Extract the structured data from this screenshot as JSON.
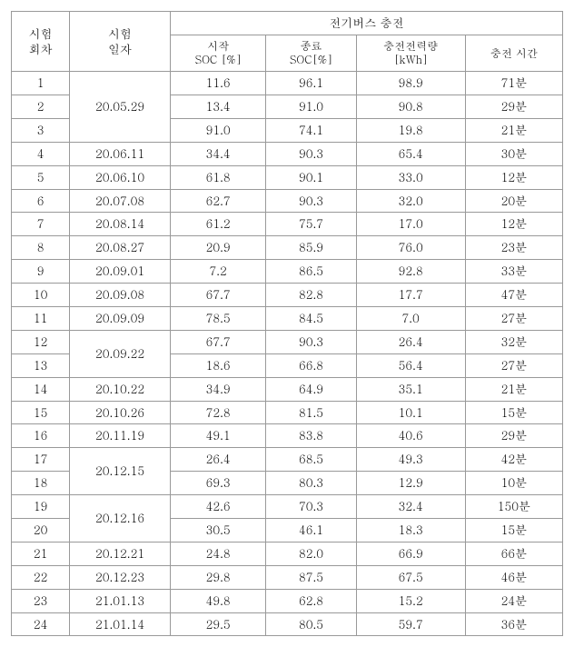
{
  "headers": {
    "col1_line1": "시험",
    "col1_line2": "회차",
    "col2_line1": "시험",
    "col2_line2": "일자",
    "group_title": "전기버스 충전",
    "sub1_line1": "시작",
    "sub1_line2": "SOC [%]",
    "sub2_line1": "종료",
    "sub2_line2": "SOC[%]",
    "sub3_line1": "충전전력량",
    "sub3_line2": "[kWh]",
    "sub4": "충전 시간"
  },
  "rows": [
    {
      "num": "1",
      "date": "20.05.29",
      "start": "11.6",
      "end": "96.1",
      "kwh": "98.9",
      "time": "71분",
      "date_rowspan": 3
    },
    {
      "num": "2",
      "date": "",
      "start": "13.4",
      "end": "91.0",
      "kwh": "90.8",
      "time": "29분"
    },
    {
      "num": "3",
      "date": "",
      "start": "91.0",
      "end": "74.1",
      "kwh": "19.8",
      "time": "21분"
    },
    {
      "num": "4",
      "date": "20.06.11",
      "start": "34.4",
      "end": "90.3",
      "kwh": "65.4",
      "time": "30분",
      "date_rowspan": 1
    },
    {
      "num": "5",
      "date": "20.06.10",
      "start": "61.8",
      "end": "90.1",
      "kwh": "33.0",
      "time": "12분",
      "date_rowspan": 1
    },
    {
      "num": "6",
      "date": "20.07.08",
      "start": "62.7",
      "end": "90.3",
      "kwh": "32.0",
      "time": "20분",
      "date_rowspan": 1
    },
    {
      "num": "7",
      "date": "20.08.14",
      "start": "61.2",
      "end": "75.7",
      "kwh": "17.0",
      "time": "12분",
      "date_rowspan": 1
    },
    {
      "num": "8",
      "date": "20.08.27",
      "start": "20.9",
      "end": "85.9",
      "kwh": "76.0",
      "time": "23분",
      "date_rowspan": 1
    },
    {
      "num": "9",
      "date": "20.09.01",
      "start": "7.2",
      "end": "86.5",
      "kwh": "92.8",
      "time": "33분",
      "date_rowspan": 1
    },
    {
      "num": "10",
      "date": "20.09.08",
      "start": "67.7",
      "end": "82.8",
      "kwh": "17.7",
      "time": "47분",
      "date_rowspan": 1
    },
    {
      "num": "11",
      "date": "20.09.09",
      "start": "78.5",
      "end": "84.5",
      "kwh": "7.0",
      "time": "27분",
      "date_rowspan": 1
    },
    {
      "num": "12",
      "date": "20.09.22",
      "start": "67.7",
      "end": "90.3",
      "kwh": "26.4",
      "time": "32분",
      "date_rowspan": 2
    },
    {
      "num": "13",
      "date": "",
      "start": "18.6",
      "end": "66.8",
      "kwh": "56.4",
      "time": "27분"
    },
    {
      "num": "14",
      "date": "20.10.22",
      "start": "34.9",
      "end": "64.9",
      "kwh": "35.1",
      "time": "21분",
      "date_rowspan": 1
    },
    {
      "num": "15",
      "date": "20.10.26",
      "start": "72.8",
      "end": "81.5",
      "kwh": "10.1",
      "time": "15분",
      "date_rowspan": 1
    },
    {
      "num": "16",
      "date": "20.11.19",
      "start": "49.1",
      "end": "83.8",
      "kwh": "40.6",
      "time": "29분",
      "date_rowspan": 1
    },
    {
      "num": "17",
      "date": "20.12.15",
      "start": "26.4",
      "end": "68.5",
      "kwh": "49.3",
      "time": "42분",
      "date_rowspan": 2
    },
    {
      "num": "18",
      "date": "",
      "start": "69.3",
      "end": "80.3",
      "kwh": "12.9",
      "time": "10분"
    },
    {
      "num": "19",
      "date": "20.12.16",
      "start": "42.6",
      "end": "70.3",
      "kwh": "32.4",
      "time": "150분",
      "date_rowspan": 2
    },
    {
      "num": "20",
      "date": "",
      "start": "30.5",
      "end": "46.1",
      "kwh": "18.3",
      "time": "15분"
    },
    {
      "num": "21",
      "date": "20.12.21",
      "start": "24.8",
      "end": "82.0",
      "kwh": "66.9",
      "time": "66분",
      "date_rowspan": 1
    },
    {
      "num": "22",
      "date": "20.12.23",
      "start": "29.8",
      "end": "87.5",
      "kwh": "67.5",
      "time": "46분",
      "date_rowspan": 1
    },
    {
      "num": "23",
      "date": "21.01.13",
      "start": "49.8",
      "end": "62.8",
      "kwh": "15.2",
      "time": "24분",
      "date_rowspan": 1
    },
    {
      "num": "24",
      "date": "21.01.14",
      "start": "29.5",
      "end": "80.5",
      "kwh": "59.7",
      "time": "36분",
      "date_rowspan": 1
    }
  ]
}
